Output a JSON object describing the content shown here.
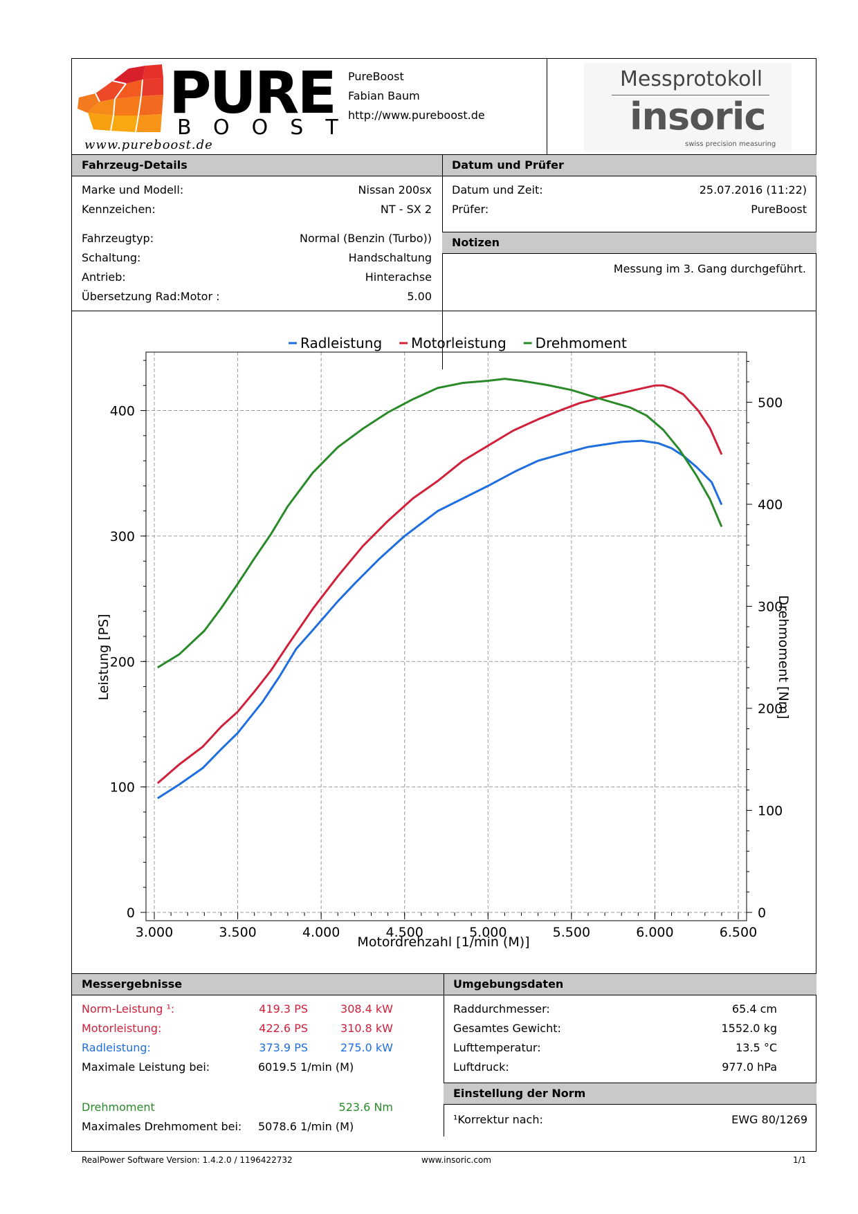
{
  "header": {
    "logo_word": "PURE",
    "logo_sub": "BOOST",
    "logo_script": "www.pureboost.de",
    "company": "PureBoost",
    "person": "Fabian Baum",
    "url": "http://www.pureboost.de",
    "doc_title": "Messprotokoll",
    "brand": "insoric",
    "brand_tagline": "swiss precision measuring"
  },
  "vehicle": {
    "title": "Fahrzeug-Details",
    "rows1": [
      {
        "label": "Marke und Modell:",
        "value": "Nissan 200sx"
      },
      {
        "label": "Kennzeichen:",
        "value": "NT - SX 2"
      }
    ],
    "rows2": [
      {
        "label": "Fahrzeugtyp:",
        "value": "Normal (Benzin (Turbo))"
      },
      {
        "label": "Schaltung:",
        "value": "Handschaltung"
      },
      {
        "label": "Antrieb:",
        "value": "Hinterachse"
      },
      {
        "label": "Übersetzung Rad:Motor :",
        "value": "5.00"
      }
    ]
  },
  "date": {
    "title": "Datum und Prüfer",
    "rows": [
      {
        "label": "Datum und Zeit:",
        "value": "25.07.2016 (11:22)"
      },
      {
        "label": "Prüfer:",
        "value": "PureBoost"
      }
    ]
  },
  "notes": {
    "title": "Notizen",
    "text": "Messung im 3. Gang durchgeführt."
  },
  "chart_data": {
    "type": "line",
    "xlabel": "Motordrehzahl [1/min (M)]",
    "ylabel": "Leistung [PS]",
    "y2label": "Drehmoment [Nm]",
    "xlim": [
      3000,
      6500
    ],
    "ylim": [
      0,
      440
    ],
    "y2lim": [
      0,
      541
    ],
    "x_ticks": [
      "3.000",
      "3.500",
      "4.000",
      "4.500",
      "5.000",
      "5.500",
      "6.000",
      "6.500"
    ],
    "y_ticks": [
      "0",
      "100",
      "200",
      "300",
      "400"
    ],
    "y2_ticks": [
      "0",
      "100",
      "200",
      "300",
      "400",
      "500"
    ],
    "grid": true,
    "legend_position": "top-center",
    "colors": {
      "Radleistung": "#1e6ee0",
      "Motorleistung": "#d0203a",
      "Drehmoment": "#2a8a2a"
    },
    "series": [
      {
        "name": "Radleistung",
        "axis": "left",
        "x": [
          3020,
          3150,
          3290,
          3400,
          3500,
          3560,
          3650,
          3750,
          3850,
          3950,
          4100,
          4200,
          4350,
          4500,
          4700,
          4850,
          5000,
          5170,
          5300,
          5460,
          5600,
          5700,
          5800,
          5920,
          6020,
          6100,
          6170,
          6250,
          6340,
          6400
        ],
        "y": [
          91,
          102,
          115,
          130,
          143,
          153,
          168,
          188,
          210,
          225,
          248,
          262,
          282,
          300,
          320,
          330,
          340,
          352,
          360,
          366,
          371,
          373,
          375,
          376,
          374,
          370,
          364,
          355,
          343,
          325
        ]
      },
      {
        "name": "Motorleistung",
        "axis": "left",
        "x": [
          3020,
          3150,
          3290,
          3400,
          3500,
          3600,
          3700,
          3800,
          3950,
          4100,
          4250,
          4400,
          4550,
          4700,
          4850,
          5000,
          5150,
          5300,
          5450,
          5550,
          5700,
          5800,
          5900,
          6000,
          6050,
          6100,
          6170,
          6260,
          6330,
          6400
        ],
        "y": [
          103,
          118,
          132,
          148,
          160,
          176,
          193,
          213,
          242,
          268,
          292,
          312,
          330,
          344,
          360,
          372,
          384,
          393,
          401,
          406,
          411,
          414,
          417,
          420,
          420,
          418,
          413,
          400,
          386,
          365
        ]
      },
      {
        "name": "Drehmoment",
        "axis": "right",
        "x": [
          3020,
          3150,
          3300,
          3400,
          3500,
          3600,
          3700,
          3800,
          3950,
          4100,
          4250,
          4400,
          4550,
          4700,
          4850,
          5000,
          5100,
          5200,
          5350,
          5500,
          5600,
          5700,
          5850,
          5950,
          6050,
          6150,
          6250,
          6330,
          6400
        ],
        "y": [
          240,
          253,
          276,
          298,
          322,
          347,
          371,
          398,
          431,
          456,
          474,
          490,
          503,
          514,
          519,
          521,
          523,
          521,
          517,
          512,
          507,
          502,
          495,
          487,
          473,
          453,
          428,
          405,
          378
        ]
      }
    ]
  },
  "results": {
    "title": "Messergebnisse",
    "norm": {
      "label": "Norm-Leistung ¹:",
      "ps": "419.3 PS",
      "kw": "308.4 kW"
    },
    "motor": {
      "label": "Motorleistung:",
      "ps": "422.6 PS",
      "kw": "310.8 kW"
    },
    "rad": {
      "label": "Radleistung:",
      "ps": "373.9 PS",
      "kw": "275.0 kW"
    },
    "max_power": {
      "label": "Maximale Leistung bei:",
      "value": "6019.5 1/min (M)"
    },
    "torque": {
      "label": "Drehmoment",
      "value": "523.6 Nm"
    },
    "max_torque": {
      "label": "Maximales Drehmoment bei:",
      "value": "5078.6 1/min (M)"
    }
  },
  "environment": {
    "title": "Umgebungsdaten",
    "rows": [
      {
        "label": "Raddurchmesser:",
        "value": "65.4 cm"
      },
      {
        "label": "Gesamtes Gewicht:",
        "value": "1552.0 kg"
      },
      {
        "label": "Lufttemperatur:",
        "value": "13.5 °C"
      },
      {
        "label": "Luftdruck:",
        "value": "977.0 hPa"
      }
    ]
  },
  "norm": {
    "title": "Einstellung der Norm",
    "label": "¹Korrektur nach:",
    "value": "EWG 80/1269"
  },
  "footer": {
    "software": "RealPower Software Version: 1.4.2.0 / 1196422732",
    "site": "www.insoric.com",
    "page": "1/1"
  }
}
